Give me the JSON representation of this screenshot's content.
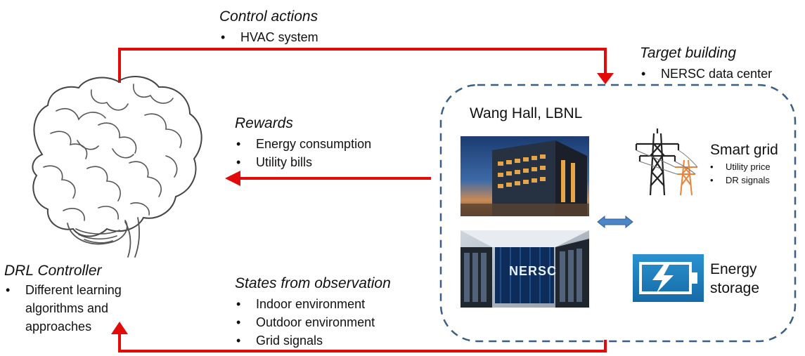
{
  "control": {
    "heading": "Control actions",
    "items": [
      "HVAC system"
    ]
  },
  "target": {
    "heading": "Target building",
    "items": [
      "NERSC data center"
    ]
  },
  "rewards": {
    "heading": "Rewards",
    "items": [
      "Energy consumption",
      "Utility bills"
    ]
  },
  "states": {
    "heading": "States from observation",
    "items": [
      "Indoor environment",
      "Outdoor environment",
      "Grid signals"
    ]
  },
  "controller": {
    "heading": "DRL Controller",
    "items": [
      "Different learning algorithms and approaches"
    ]
  },
  "building": {
    "title": "Wang Hall, LBNL",
    "supercomputer_text": "NERSC"
  },
  "grid": {
    "title": "Smart grid",
    "items": [
      "Utility price",
      "DR signals"
    ]
  },
  "storage": {
    "title": "Energy storage"
  },
  "colors": {
    "arrow": "#e30a0a",
    "dashed_border": "#3a5f86",
    "double_arrow": "#4a86c8",
    "battery": "#1e7fbf"
  }
}
